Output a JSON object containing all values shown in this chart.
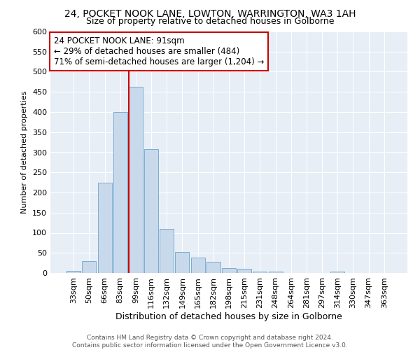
{
  "title1": "24, POCKET NOOK LANE, LOWTON, WARRINGTON, WA3 1AH",
  "title2": "Size of property relative to detached houses in Golborne",
  "xlabel": "Distribution of detached houses by size in Golborne",
  "ylabel": "Number of detached properties",
  "categories": [
    "33sqm",
    "50sqm",
    "66sqm",
    "83sqm",
    "99sqm",
    "116sqm",
    "132sqm",
    "149sqm",
    "165sqm",
    "182sqm",
    "198sqm",
    "215sqm",
    "231sqm",
    "248sqm",
    "264sqm",
    "281sqm",
    "297sqm",
    "314sqm",
    "330sqm",
    "347sqm",
    "363sqm"
  ],
  "values": [
    5,
    30,
    225,
    400,
    462,
    308,
    110,
    53,
    38,
    27,
    13,
    10,
    3,
    3,
    0,
    0,
    0,
    4,
    0,
    0,
    0
  ],
  "bar_color": "#c9d9ec",
  "bar_edge_color": "#7aacd1",
  "vline_color": "#cc0000",
  "vline_index": 4,
  "annotation_text": "24 POCKET NOOK LANE: 91sqm\n← 29% of detached houses are smaller (484)\n71% of semi-detached houses are larger (1,204) →",
  "annotation_box_color": "#ffffff",
  "annotation_box_edge_color": "#cc0000",
  "ylim": [
    0,
    600
  ],
  "yticks": [
    0,
    50,
    100,
    150,
    200,
    250,
    300,
    350,
    400,
    450,
    500,
    550,
    600
  ],
  "background_color": "#e8eef5",
  "footer_text": "Contains HM Land Registry data © Crown copyright and database right 2024.\nContains public sector information licensed under the Open Government Licence v3.0.",
  "title1_fontsize": 10,
  "title2_fontsize": 9,
  "xlabel_fontsize": 9,
  "ylabel_fontsize": 8,
  "annotation_fontsize": 8.5,
  "footer_fontsize": 6.5,
  "tick_fontsize": 8
}
